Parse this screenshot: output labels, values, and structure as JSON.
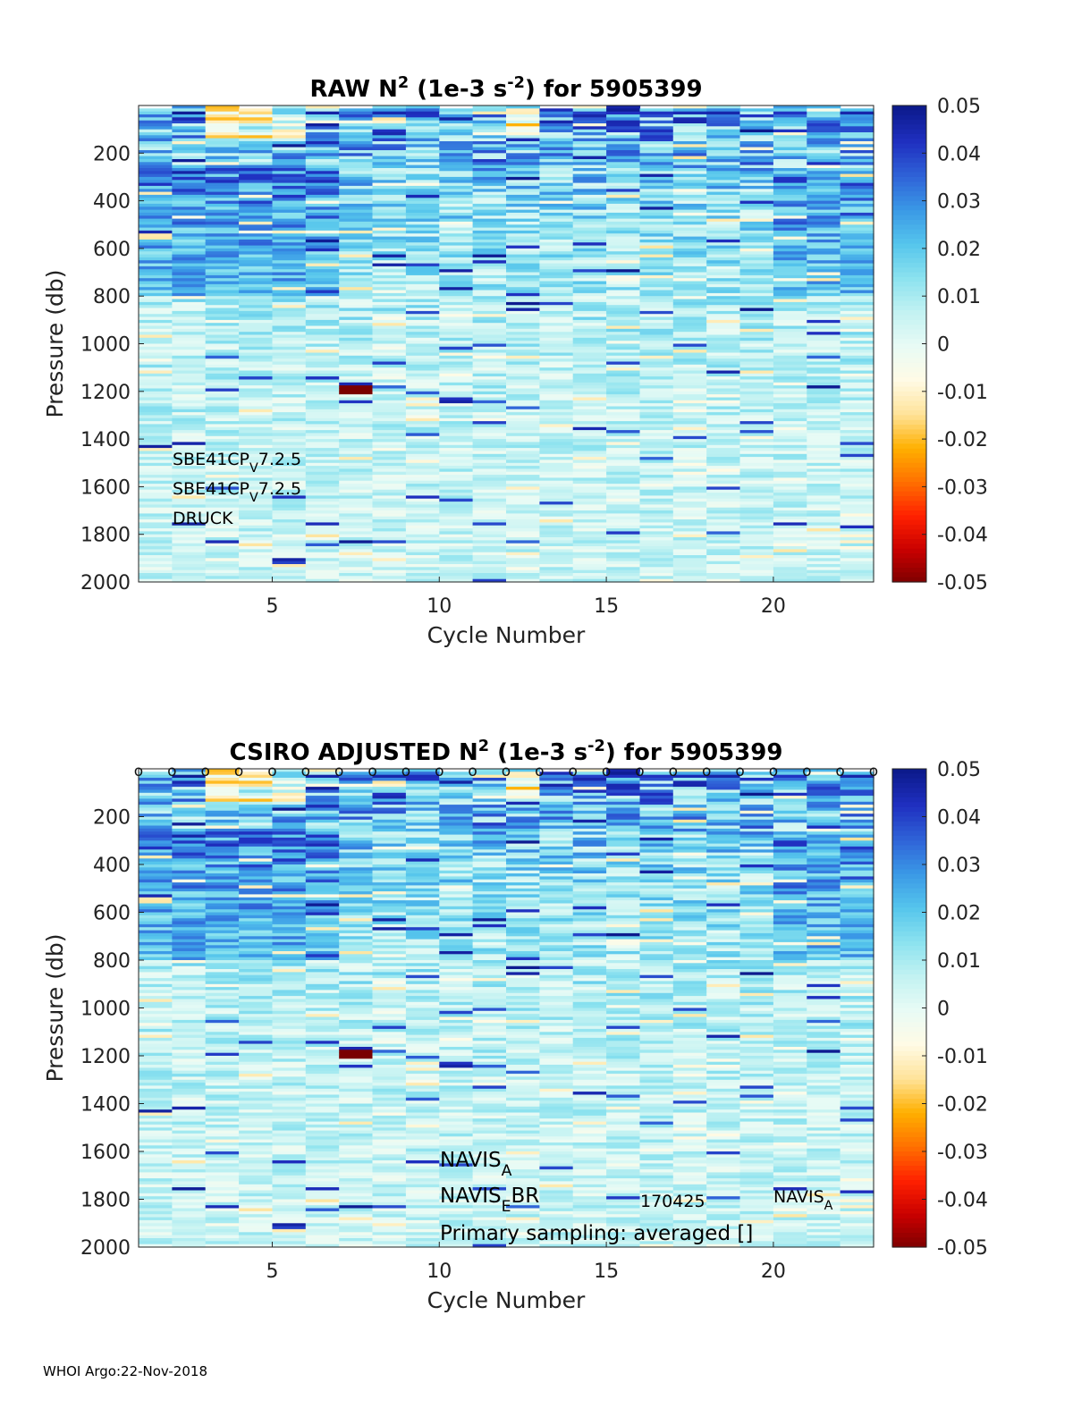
{
  "footer": "WHOI Argo:22-Nov-2018",
  "colors": {
    "ramp": [
      "#7a0000",
      "#c80000",
      "#ff2000",
      "#ff7000",
      "#ffb000",
      "#ffe39a",
      "#fffbe6",
      "#e8fbf5",
      "#c2f2f2",
      "#8be2ef",
      "#55c5ec",
      "#3a98e6",
      "#2f62d7",
      "#1f2fc0",
      "#0c1a8c"
    ]
  },
  "chart_data": [
    {
      "type": "heatmap",
      "title_main": "RAW N",
      "title_sup": "2",
      "title_mid": " (1e-3 s",
      "title_sup2": "-2",
      "title_end": ") for 5905399",
      "xlabel": "Cycle Number",
      "ylabel": "Pressure (db)",
      "xlim": [
        1,
        23
      ],
      "ylim": [
        2000,
        0
      ],
      "xticks": [
        "5",
        "10",
        "15",
        "20"
      ],
      "yticks": [
        "200",
        "400",
        "600",
        "800",
        "1000",
        "1200",
        "1400",
        "1600",
        "1800",
        "2000"
      ],
      "colorbar": {
        "clim": [
          -0.05,
          0.05
        ],
        "ticks": [
          "0.05",
          "0.04",
          "0.03",
          "0.02",
          "0.01",
          "0",
          "-0.01",
          "-0.02",
          "-0.03",
          "-0.04",
          "-0.05"
        ]
      },
      "cycles": 22,
      "annotations": [
        {
          "base": "SBE41CP",
          "sub": "V",
          "tail": "7.2.5"
        },
        {
          "base": "SBE41CP",
          "sub": "V",
          "tail": "7.2.5"
        },
        {
          "base": "DRUCK",
          "sub": "",
          "tail": ""
        }
      ]
    },
    {
      "type": "heatmap",
      "title_main": "CSIRO  ADJUSTED N",
      "title_sup": "2",
      "title_mid": " (1e-3 s",
      "title_sup2": "-2",
      "title_end": ") for 5905399",
      "xlabel": "Cycle Number",
      "ylabel": "Pressure (db)",
      "xlim": [
        1,
        23
      ],
      "ylim": [
        2000,
        0
      ],
      "xticks": [
        "5",
        "10",
        "15",
        "20"
      ],
      "yticks": [
        "200",
        "400",
        "600",
        "800",
        "1000",
        "1200",
        "1400",
        "1600",
        "1800",
        "2000"
      ],
      "colorbar": {
        "clim": [
          -0.05,
          0.05
        ],
        "ticks": [
          "0.05",
          "0.04",
          "0.03",
          "0.02",
          "0.01",
          "0",
          "-0.01",
          "-0.02",
          "-0.03",
          "-0.04",
          "-0.05"
        ]
      },
      "cycles": 22,
      "marker": "o",
      "annotations": [
        {
          "base": "NAVIS",
          "sub": "A",
          "tail": ""
        },
        {
          "base": "NAVIS",
          "sub": "E",
          "tail": "BR"
        },
        {
          "base": "Primary sampling: averaged []",
          "sub": "",
          "tail": ""
        }
      ],
      "extra_labels": [
        {
          "text": "170425"
        },
        {
          "base": "NAVIS",
          "sub": "A"
        }
      ]
    }
  ]
}
